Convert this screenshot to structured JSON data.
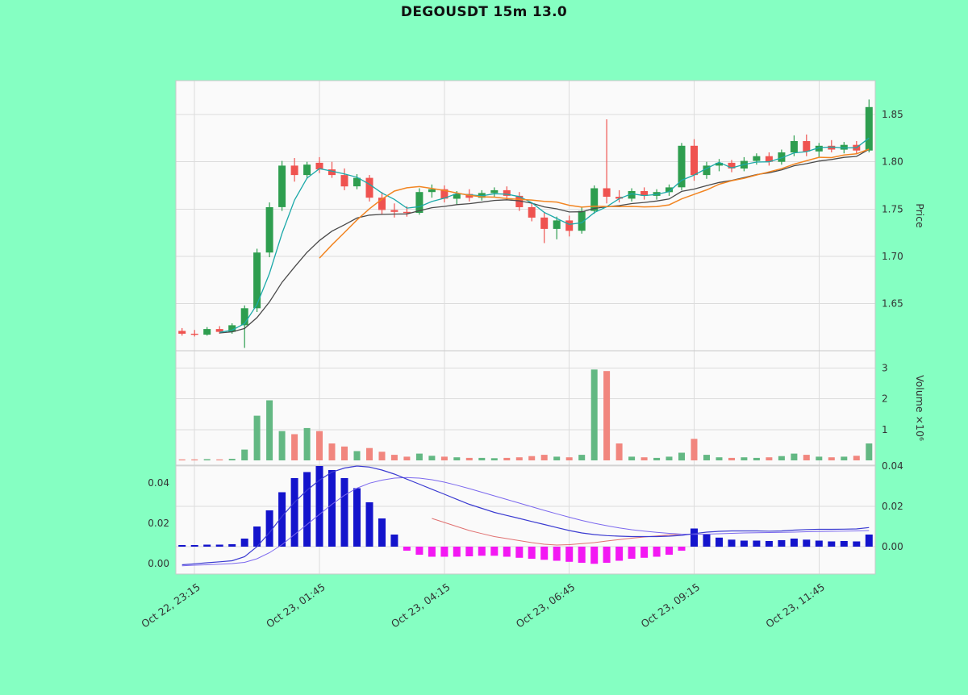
{
  "title": "DEGOUSDT 15m 13.0",
  "colors": {
    "background": "#85ffc2",
    "panel": "#fafafa",
    "grid": "#dcdcdc",
    "border": "#c8c8c8",
    "candle_up": "#2e9e4f",
    "candle_down": "#ef5350",
    "volume_up": "#63b883",
    "volume_down": "#f1867e",
    "ma_fast": "#1ca9a9",
    "ma_mid": "#f28522",
    "ma_slow": "#4a4a4a",
    "macd_pos": "#1414cc",
    "macd_neg": "#f318f3",
    "macd_line": "#3b3bd1",
    "signal_line": "#7b68ee",
    "aux_line": "#e07070",
    "text": "#333333",
    "title": "#111111"
  },
  "chart_data": {
    "type": "candlestick",
    "title": "DEGOUSDT 15m 13.0",
    "symbol": "DEGOUSDT",
    "timeframe": "15m",
    "param": "13.0",
    "panels": [
      "price",
      "volume",
      "macd"
    ],
    "x_axis": {
      "tick_indices": [
        1,
        11,
        21,
        31,
        41,
        51
      ],
      "tick_labels": [
        "Oct 22, 23:15",
        "Oct 23, 01:45",
        "Oct 23, 04:15",
        "Oct 23, 06:45",
        "Oct 23, 09:15",
        "Oct 23, 11:45"
      ]
    },
    "price_axis": {
      "label": "Price",
      "ylim": [
        1.6,
        1.886
      ],
      "tick_values": [
        1.65,
        1.7,
        1.75,
        1.8,
        1.85
      ],
      "tick_labels": [
        "1.65",
        "1.70",
        "1.75",
        "1.80",
        "1.85"
      ]
    },
    "volume_axis": {
      "label": "Volume ×10⁶",
      "tick_values": [
        1,
        2,
        3
      ],
      "tick_labels": [
        "1",
        "2",
        "3"
      ]
    },
    "macd_axis": {
      "left_tick_values": [
        0,
        0.02,
        0.04
      ],
      "left_tick_labels": [
        "0.00",
        "0.02",
        "0.04"
      ],
      "right_tick_values": [
        0,
        0.02,
        0.04
      ],
      "right_tick_labels": [
        "0.00",
        "0.02",
        "0.04"
      ]
    },
    "candles": {
      "open": [
        1.621,
        1.618,
        1.617,
        1.623,
        1.62,
        1.627,
        1.645,
        1.704,
        1.752,
        1.796,
        1.786,
        1.799,
        1.792,
        1.786,
        1.774,
        1.783,
        1.762,
        1.749,
        1.747,
        1.746,
        1.768,
        1.771,
        1.761,
        1.766,
        1.762,
        1.767,
        1.77,
        1.764,
        1.752,
        1.741,
        1.729,
        1.738,
        1.727,
        1.748,
        1.772,
        1.763,
        1.761,
        1.769,
        1.764,
        1.768,
        1.773,
        1.817,
        1.786,
        1.796,
        1.799,
        1.793,
        1.801,
        1.806,
        1.8,
        1.81,
        1.822,
        1.811,
        1.817,
        1.813,
        1.818,
        1.812
      ],
      "high": [
        1.624,
        1.622,
        1.625,
        1.626,
        1.629,
        1.648,
        1.708,
        1.757,
        1.801,
        1.804,
        1.8,
        1.805,
        1.8,
        1.793,
        1.787,
        1.786,
        1.768,
        1.756,
        1.753,
        1.772,
        1.776,
        1.775,
        1.769,
        1.771,
        1.77,
        1.773,
        1.774,
        1.768,
        1.757,
        1.746,
        1.742,
        1.743,
        1.752,
        1.775,
        1.845,
        1.77,
        1.772,
        1.773,
        1.771,
        1.776,
        1.82,
        1.824,
        1.8,
        1.803,
        1.802,
        1.805,
        1.809,
        1.81,
        1.813,
        1.828,
        1.829,
        1.82,
        1.823,
        1.821,
        1.822,
        1.866
      ],
      "low": [
        1.616,
        1.615,
        1.616,
        1.618,
        1.618,
        1.603,
        1.641,
        1.699,
        1.748,
        1.779,
        1.782,
        1.788,
        1.783,
        1.77,
        1.771,
        1.758,
        1.744,
        1.741,
        1.742,
        1.744,
        1.762,
        1.757,
        1.755,
        1.758,
        1.759,
        1.763,
        1.76,
        1.748,
        1.737,
        1.714,
        1.718,
        1.721,
        1.724,
        1.745,
        1.756,
        1.757,
        1.758,
        1.76,
        1.76,
        1.764,
        1.77,
        1.78,
        1.782,
        1.79,
        1.789,
        1.79,
        1.797,
        1.796,
        1.797,
        1.806,
        1.806,
        1.805,
        1.81,
        1.809,
        1.808,
        1.81
      ],
      "close": [
        1.618,
        1.617,
        1.623,
        1.62,
        1.627,
        1.645,
        1.704,
        1.752,
        1.796,
        1.786,
        1.797,
        1.792,
        1.786,
        1.774,
        1.783,
        1.762,
        1.749,
        1.747,
        1.746,
        1.768,
        1.771,
        1.761,
        1.766,
        1.762,
        1.767,
        1.77,
        1.764,
        1.752,
        1.741,
        1.729,
        1.738,
        1.727,
        1.748,
        1.772,
        1.763,
        1.761,
        1.769,
        1.764,
        1.768,
        1.773,
        1.817,
        1.786,
        1.796,
        1.799,
        1.793,
        1.801,
        1.806,
        1.8,
        1.81,
        1.822,
        1.811,
        1.817,
        1.813,
        1.818,
        1.812,
        1.858
      ]
    },
    "volume": [
      0.03,
      0.02,
      0.04,
      0.02,
      0.05,
      0.35,
      1.45,
      1.95,
      0.95,
      0.85,
      1.05,
      0.95,
      0.55,
      0.45,
      0.3,
      0.4,
      0.28,
      0.18,
      0.12,
      0.22,
      0.15,
      0.12,
      0.1,
      0.08,
      0.08,
      0.07,
      0.08,
      0.1,
      0.14,
      0.18,
      0.12,
      0.1,
      0.18,
      2.95,
      2.9,
      0.55,
      0.12,
      0.1,
      0.08,
      0.12,
      0.25,
      0.7,
      0.18,
      0.1,
      0.08,
      0.1,
      0.08,
      0.1,
      0.14,
      0.22,
      0.18,
      0.12,
      0.1,
      0.12,
      0.15,
      0.55
    ],
    "macd": {
      "hist": [
        0.0008,
        0.0008,
        0.001,
        0.001,
        0.0012,
        0.004,
        0.01,
        0.018,
        0.027,
        0.034,
        0.037,
        0.04,
        0.038,
        0.034,
        0.029,
        0.022,
        0.014,
        0.006,
        -0.002,
        -0.004,
        -0.005,
        -0.005,
        -0.005,
        -0.0048,
        -0.0045,
        -0.0045,
        -0.005,
        -0.0055,
        -0.006,
        -0.0065,
        -0.007,
        -0.0075,
        -0.008,
        -0.0085,
        -0.008,
        -0.007,
        -0.006,
        -0.0055,
        -0.005,
        -0.004,
        -0.002,
        0.009,
        0.006,
        0.0045,
        0.0035,
        0.003,
        0.003,
        0.0028,
        0.0032,
        0.004,
        0.0035,
        0.003,
        0.0026,
        0.0028,
        0.0026,
        0.006
      ],
      "macd_line": [
        -0.009,
        -0.0085,
        -0.008,
        -0.0075,
        -0.007,
        -0.005,
        0.0,
        0.007,
        0.015,
        0.022,
        0.028,
        0.033,
        0.037,
        0.039,
        0.04,
        0.0395,
        0.038,
        0.036,
        0.0335,
        0.031,
        0.0285,
        0.026,
        0.0235,
        0.021,
        0.019,
        0.017,
        0.0155,
        0.014,
        0.0125,
        0.011,
        0.0095,
        0.008,
        0.0068,
        0.006,
        0.0055,
        0.0052,
        0.005,
        0.005,
        0.005,
        0.0052,
        0.0056,
        0.0065,
        0.0072,
        0.0076,
        0.0078,
        0.0078,
        0.0078,
        0.0077,
        0.0078,
        0.0082,
        0.0085,
        0.0086,
        0.0086,
        0.0087,
        0.0088,
        0.0095
      ],
      "signal_line": [
        -0.0095,
        -0.0092,
        -0.009,
        -0.0087,
        -0.0084,
        -0.0078,
        -0.006,
        -0.003,
        0.001,
        0.006,
        0.011,
        0.016,
        0.021,
        0.0255,
        0.029,
        0.0315,
        0.033,
        0.034,
        0.0343,
        0.034,
        0.0332,
        0.032,
        0.0305,
        0.0288,
        0.027,
        0.0252,
        0.0234,
        0.0216,
        0.0198,
        0.018,
        0.0163,
        0.0146,
        0.013,
        0.0116,
        0.0104,
        0.0093,
        0.0084,
        0.0077,
        0.0071,
        0.0066,
        0.0062,
        0.0061,
        0.0062,
        0.0064,
        0.0066,
        0.0068,
        0.0069,
        0.007,
        0.0071,
        0.0072,
        0.0074,
        0.0075,
        0.0076,
        0.0077,
        0.0078,
        0.008
      ],
      "aux_line": [
        null,
        null,
        null,
        null,
        null,
        null,
        null,
        null,
        null,
        null,
        null,
        null,
        null,
        null,
        null,
        null,
        null,
        null,
        null,
        null,
        0.014,
        0.012,
        0.01,
        0.008,
        0.0065,
        0.005,
        0.004,
        0.003,
        0.002,
        0.0012,
        0.0008,
        0.001,
        0.0015,
        0.002,
        0.0028,
        0.0035,
        0.0042,
        0.0048,
        0.0053,
        0.0058,
        0.0062,
        null,
        null,
        null,
        null,
        null,
        null,
        null,
        null,
        null,
        null,
        null,
        null,
        null,
        null,
        null
      ]
    }
  }
}
